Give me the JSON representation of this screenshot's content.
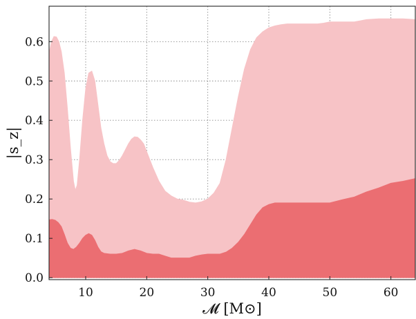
{
  "chart_data": {
    "type": "area",
    "xlabel": "𝓜 [M⊙]",
    "ylabel": "|s_z|",
    "xlim": [
      4,
      64
    ],
    "ylim": [
      -0.005,
      0.69
    ],
    "xticks": [
      10,
      20,
      30,
      40,
      50,
      60
    ],
    "yticks": [
      0.0,
      0.1,
      0.2,
      0.3,
      0.4,
      0.5,
      0.6
    ],
    "ytick_labels": [
      "0.0",
      "0.1",
      "0.2",
      "0.3",
      "0.4",
      "0.5",
      "0.6"
    ],
    "grid": true,
    "series": [
      {
        "color": "#f7c3c6",
        "x": [
          4,
          4.4,
          4.8,
          5.2,
          5.6,
          6,
          6.5,
          7,
          7.5,
          8,
          8.3,
          8.6,
          9,
          9.5,
          10,
          10.5,
          11,
          11.5,
          12,
          12.5,
          13,
          13.5,
          14,
          14.5,
          15,
          15.5,
          16,
          16.5,
          17,
          17.5,
          18,
          18.5,
          19,
          19.5,
          20,
          21,
          22,
          23,
          24,
          25,
          26,
          27,
          28,
          29,
          30,
          31,
          32,
          33,
          34,
          35,
          36,
          37,
          38,
          39,
          40,
          41,
          42,
          43,
          44,
          46,
          48,
          49,
          50,
          52,
          54,
          55,
          56,
          58,
          60,
          62,
          64
        ],
        "values": [
          0.57,
          0.6,
          0.613,
          0.612,
          0.6,
          0.575,
          0.52,
          0.43,
          0.33,
          0.245,
          0.222,
          0.235,
          0.3,
          0.4,
          0.48,
          0.52,
          0.525,
          0.5,
          0.44,
          0.38,
          0.34,
          0.31,
          0.295,
          0.29,
          0.29,
          0.298,
          0.31,
          0.325,
          0.34,
          0.352,
          0.358,
          0.357,
          0.35,
          0.34,
          0.32,
          0.28,
          0.245,
          0.22,
          0.208,
          0.2,
          0.197,
          0.192,
          0.19,
          0.193,
          0.2,
          0.215,
          0.24,
          0.3,
          0.38,
          0.46,
          0.53,
          0.58,
          0.61,
          0.625,
          0.635,
          0.64,
          0.643,
          0.645,
          0.645,
          0.645,
          0.645,
          0.647,
          0.65,
          0.65,
          0.65,
          0.653,
          0.656,
          0.658,
          0.658,
          0.658,
          0.656
        ]
      },
      {
        "color": "#eb6e72",
        "x": [
          4,
          4.5,
          5,
          5.5,
          6,
          6.5,
          7,
          7.5,
          8,
          8.5,
          9,
          9.5,
          10,
          10.5,
          11,
          11.5,
          12,
          12.5,
          13,
          14,
          15,
          16,
          17,
          18,
          19,
          20,
          21,
          22,
          23,
          24,
          25,
          26,
          27,
          28,
          29,
          30,
          31,
          32,
          33,
          34,
          35,
          36,
          37,
          38,
          39,
          40,
          41,
          42,
          44,
          46,
          48,
          50,
          52,
          54,
          56,
          58,
          60,
          62,
          64
        ],
        "values": [
          0.147,
          0.148,
          0.146,
          0.14,
          0.13,
          0.11,
          0.088,
          0.075,
          0.072,
          0.078,
          0.088,
          0.1,
          0.108,
          0.112,
          0.108,
          0.095,
          0.078,
          0.066,
          0.062,
          0.06,
          0.06,
          0.062,
          0.068,
          0.072,
          0.068,
          0.062,
          0.06,
          0.06,
          0.055,
          0.05,
          0.05,
          0.05,
          0.05,
          0.055,
          0.058,
          0.06,
          0.06,
          0.06,
          0.065,
          0.075,
          0.09,
          0.11,
          0.135,
          0.16,
          0.178,
          0.186,
          0.19,
          0.19,
          0.19,
          0.19,
          0.19,
          0.19,
          0.198,
          0.205,
          0.218,
          0.228,
          0.24,
          0.245,
          0.252
        ]
      }
    ]
  }
}
